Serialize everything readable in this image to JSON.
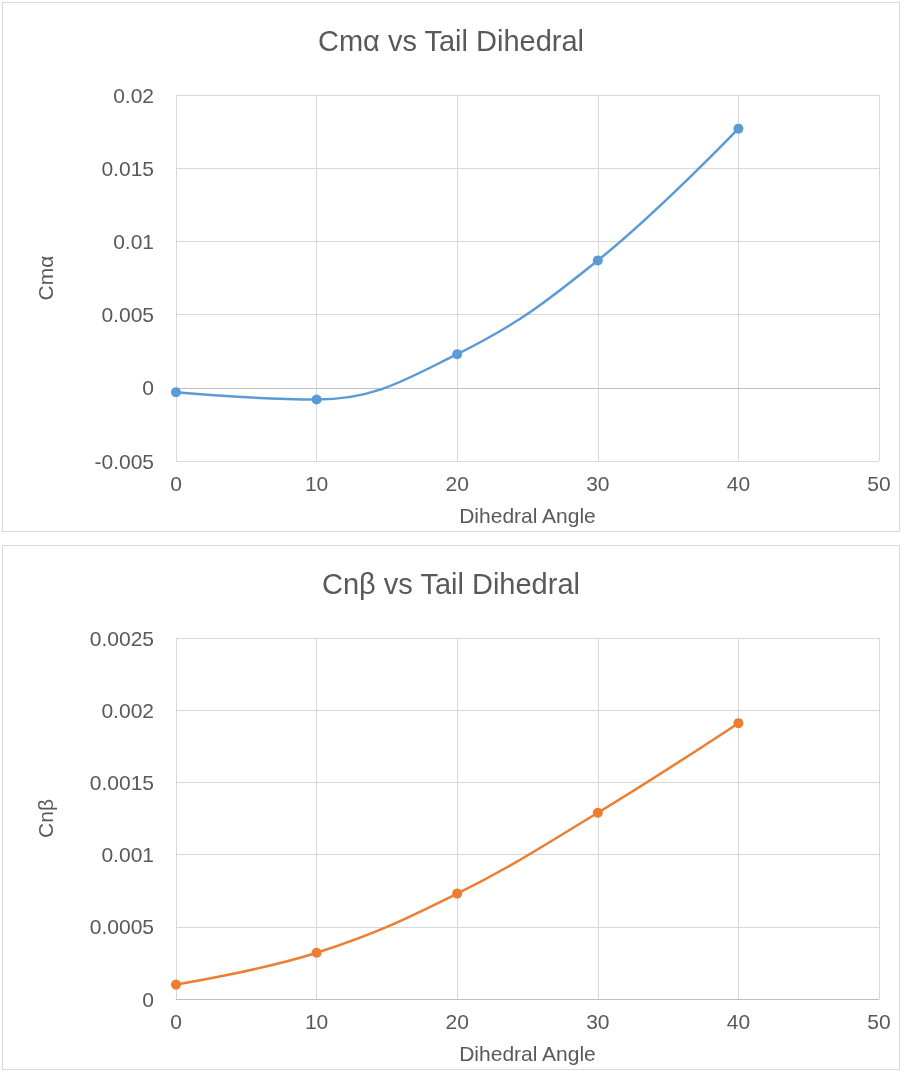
{
  "chart_data": [
    {
      "type": "line",
      "title": "Cmα vs Tail Dihedral",
      "xlabel": "Dihedral Angle",
      "ylabel": "Cmα",
      "x": [
        0,
        10,
        20,
        30,
        40
      ],
      "series": [
        {
          "color": "#5b9bd5",
          "values": [
            -0.0003,
            -0.0008,
            0.0023,
            0.0087,
            0.0177
          ]
        }
      ],
      "xlim": [
        0,
        50
      ],
      "xticks": [
        0,
        10,
        20,
        30,
        40,
        50
      ],
      "ylim": [
        -0.005,
        0.02
      ],
      "yticks": [
        -0.005,
        0,
        0.005,
        0.01,
        0.015,
        0.02
      ],
      "grid": true,
      "marker": "circle",
      "line_style": "solid"
    },
    {
      "type": "line",
      "title": "Cnβ vs Tail Dihedral",
      "xlabel": "Dihedral Angle",
      "ylabel": "Cnβ",
      "x": [
        0,
        10,
        20,
        30,
        40
      ],
      "series": [
        {
          "color": "#ed7d31",
          "values": [
            0.0001,
            0.00032,
            0.00073,
            0.00129,
            0.00191
          ]
        }
      ],
      "xlim": [
        0,
        50
      ],
      "xticks": [
        0,
        10,
        20,
        30,
        40,
        50
      ],
      "ylim": [
        0,
        0.0025
      ],
      "yticks": [
        0,
        0.0005,
        0.001,
        0.0015,
        0.002,
        0.0025
      ],
      "grid": true,
      "marker": "circle",
      "line_style": "solid"
    }
  ]
}
